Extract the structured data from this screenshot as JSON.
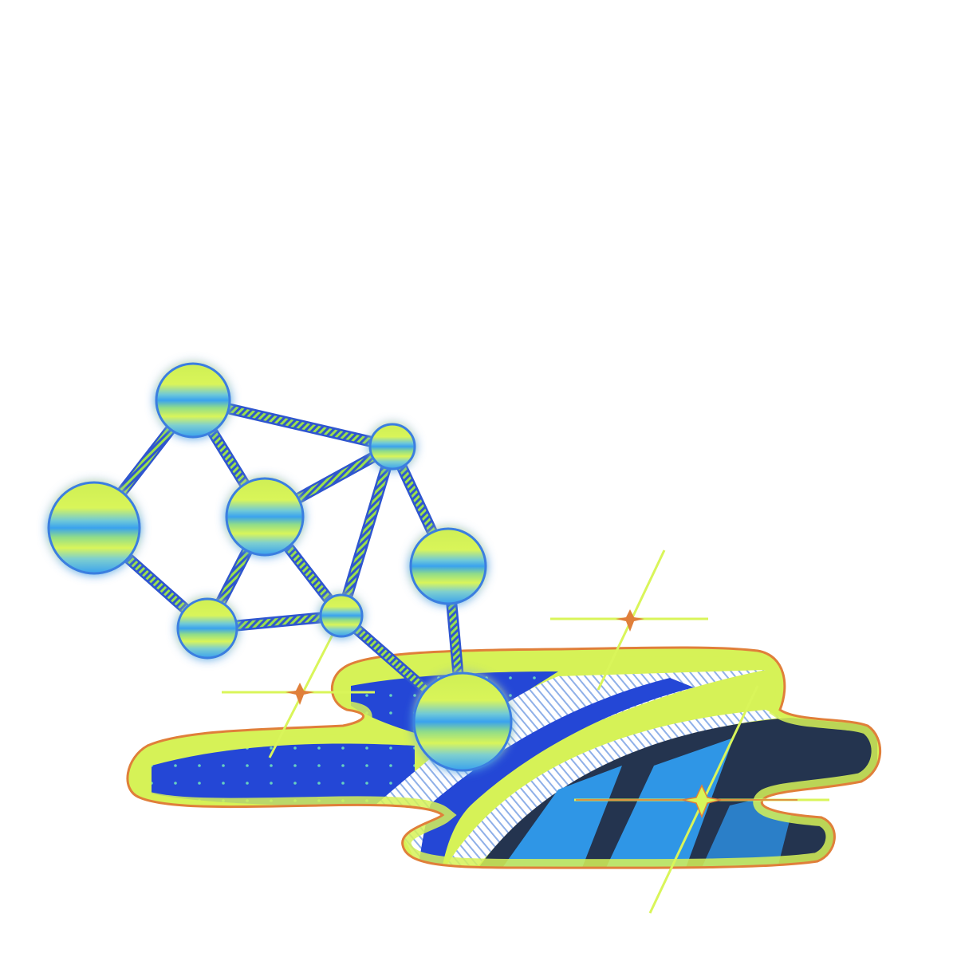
{
  "illustration": {
    "subject": "",
    "colors": {
      "background": "#ffffff",
      "node_yellow": "#d9f55a",
      "node_blue": "#3aa2ee",
      "node_outline": "#3a7ee0",
      "bond_green": "#9be14a",
      "bond_blue": "#2f56cf",
      "blob_outline": "#e07f3a",
      "blob_fill_lime": "#d6f257",
      "blob_deep_blue": "#2447d6",
      "blob_navy": "#24344f",
      "blob_sky": "#2f96e6",
      "sparkle_line": "#d9f55a",
      "sparkle_orange": "#e07f3a"
    }
  }
}
